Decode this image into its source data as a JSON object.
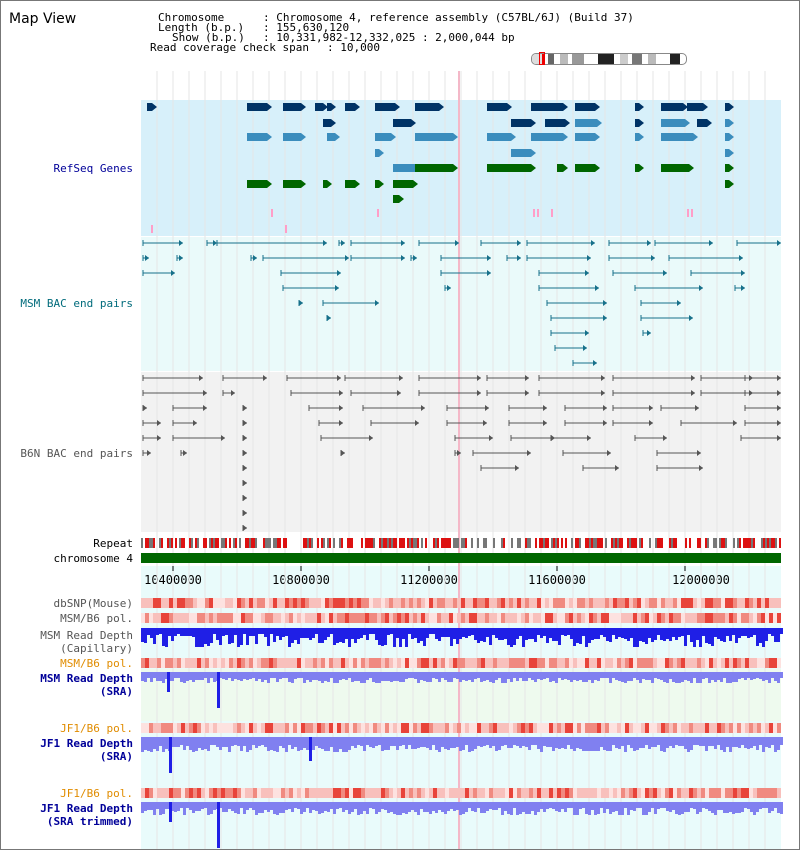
{
  "page_title": "Map View",
  "header": {
    "chromosome_label": "Chromosome",
    "chromosome_value": ": Chromosome 4, reference assembly (C57BL/6J) (Build 37)",
    "length_label": "Length (b.p.)",
    "length_value": ": 155,630,120",
    "show_label": "Show (b.p.)",
    "show_value": ": 10,331,982-12,332,025 : 2,000,044 bp",
    "coverage_label": "Read coverage check span",
    "coverage_value": ": 10,000"
  },
  "tracks": {
    "refseq": "RefSeq Genes",
    "msm_bac": "MSM BAC end pairs",
    "b6n_bac": "B6N BAC end pairs",
    "repeat": "Repeat",
    "chromosome": "chromosome 4",
    "dbsnp": "dbSNP(Mouse)",
    "msm_b6_pol_1": "MSM/B6 pol.",
    "msm_read_depth_cap_1": "MSM Read Depth",
    "msm_read_depth_cap_2": "(Capillary)",
    "msm_b6_pol_2": "MSM/B6 pol.",
    "msm_read_depth_sra_1": "MSM Read Depth",
    "msm_read_depth_sra_2": "(SRA)",
    "jf1_b6_pol_1": "JF1/B6 pol.",
    "jf1_read_depth_sra_1": "JF1 Read Depth",
    "jf1_read_depth_sra_2": "(SRA)",
    "jf1_b6_pol_2": "JF1/B6 pol.",
    "jf1_read_depth_trim_1": "JF1 Read Depth",
    "jf1_read_depth_trim_2": "(SRA trimmed)"
  },
  "axis": {
    "ticks": [
      "10400000",
      "10800000",
      "11200000",
      "11600000",
      "12000000"
    ]
  },
  "colors": {
    "label_navy": "#000099",
    "label_teal": "#006b7b",
    "label_gray": "#555555",
    "label_orange": "#e08c00",
    "refseq_bg": "#d7f0fa",
    "msm_bg": "#eafafa",
    "b6n_bg": "#f2f2f2",
    "gene_dark": "#003366",
    "gene_mid": "#3b8dbd",
    "gene_green": "#006600",
    "bac_teal": "#16708a",
    "bac_gray": "#555555",
    "chromosome_green": "#006600",
    "depth_blue": "#1f1fe6",
    "depth_light": "#8080f0",
    "pol_red": "#e8443a"
  }
}
